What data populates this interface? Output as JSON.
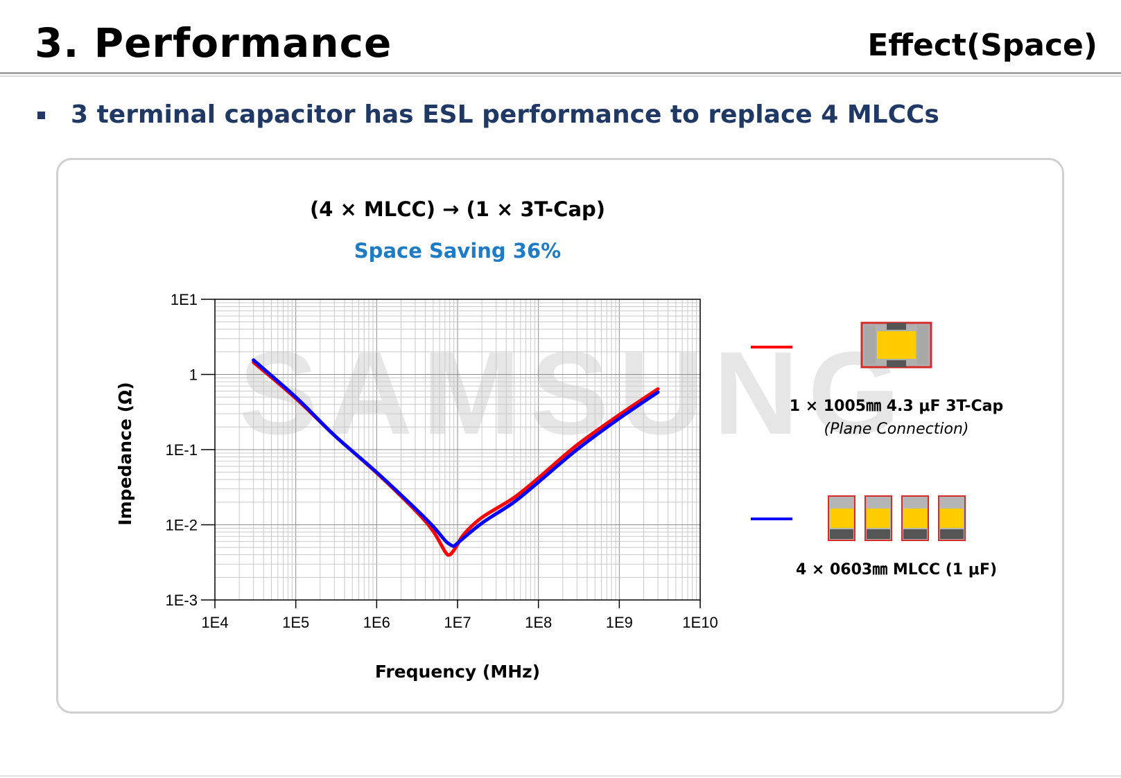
{
  "header": {
    "title": "3. Performance",
    "subtitle": "Effect(Space)"
  },
  "bullet": {
    "text": "3 terminal capacitor has ESL performance to replace 4 MLCCs"
  },
  "panel": {
    "headline": "(4 × MLCC) → (1 × 3T-Cap)",
    "saving": "Space Saving 36%",
    "watermark": "SAMSUNG"
  },
  "legend": [
    {
      "color": "#ff0000",
      "label": "1 × 1005㎜ 4.3 μF 3T-Cap",
      "note": "(Plane Connection)",
      "icon": "3t-cap-chip-icon"
    },
    {
      "color": "#0000ff",
      "label": "4 × 0603㎜ MLCC (1 μF)",
      "note": "",
      "icon": "mlcc-chip-row-icon"
    }
  ],
  "chart_data": {
    "type": "line",
    "title": "",
    "xlabel": "Frequency (MHz)",
    "ylabel": "Impedance (Ω)",
    "xscale": "log",
    "yscale": "log",
    "xlim": [
      10000,
      10000000000
    ],
    "ylim": [
      0.001,
      10
    ],
    "grid": true,
    "x_tick_labels": [
      "1E4",
      "1E5",
      "1E6",
      "1E7",
      "1E8",
      "1E9",
      "1E10"
    ],
    "y_tick_labels": [
      "1E1",
      "1",
      "1E-1",
      "1E-2",
      "1E-3"
    ],
    "series": [
      {
        "name": "1 × 1005㎜ 4.3 μF 3T-Cap",
        "color": "#ff0000",
        "x": [
          30000,
          100000,
          300000,
          1000000,
          3000000,
          5000000,
          7000000,
          8000000,
          9500000,
          12000000,
          20000000,
          50000000,
          100000000,
          300000000,
          1000000000,
          3000000000
        ],
        "y": [
          1.45,
          0.48,
          0.155,
          0.049,
          0.0155,
          0.0082,
          0.0044,
          0.004,
          0.005,
          0.0075,
          0.0125,
          0.023,
          0.042,
          0.115,
          0.29,
          0.64
        ]
      },
      {
        "name": "4 × 0603㎜ MLCC (1 μF)",
        "color": "#0000ff",
        "x": [
          30000,
          100000,
          300000,
          1000000,
          3000000,
          5000000,
          7000000,
          8000000,
          9000000,
          10000000,
          20000000,
          50000000,
          100000000,
          300000000,
          1000000000,
          3000000000
        ],
        "y": [
          1.55,
          0.5,
          0.155,
          0.05,
          0.0165,
          0.0095,
          0.0062,
          0.0055,
          0.0052,
          0.0057,
          0.0105,
          0.02,
          0.037,
          0.1,
          0.26,
          0.58
        ]
      }
    ]
  }
}
